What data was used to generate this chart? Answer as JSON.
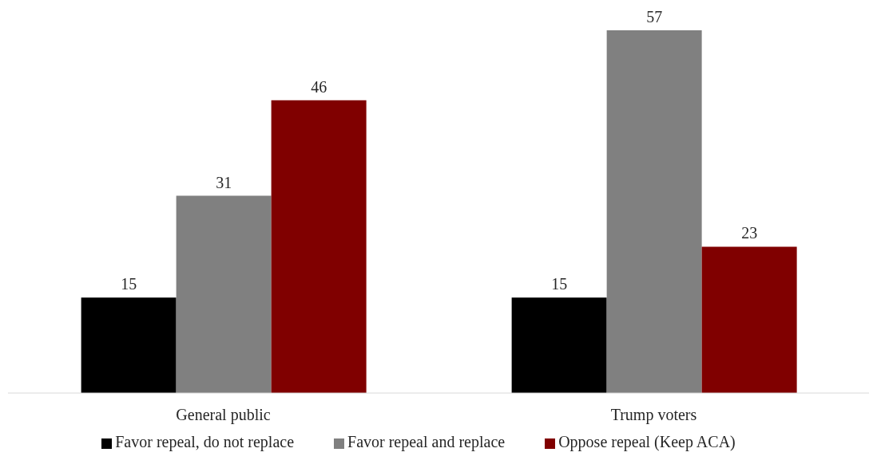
{
  "chart_data": {
    "type": "bar",
    "categories": [
      "General public",
      "Trump voters"
    ],
    "series": [
      {
        "name": "Favor repeal, do not replace",
        "color": "#000000",
        "values": [
          15,
          15
        ]
      },
      {
        "name": "Favor repeal and replace",
        "color": "#808080",
        "values": [
          31,
          57
        ]
      },
      {
        "name": "Oppose repeal (Keep ACA)",
        "color": "#800000",
        "values": [
          46,
          23
        ]
      }
    ],
    "data_labels": true,
    "legend": "bottom",
    "grid": false
  }
}
